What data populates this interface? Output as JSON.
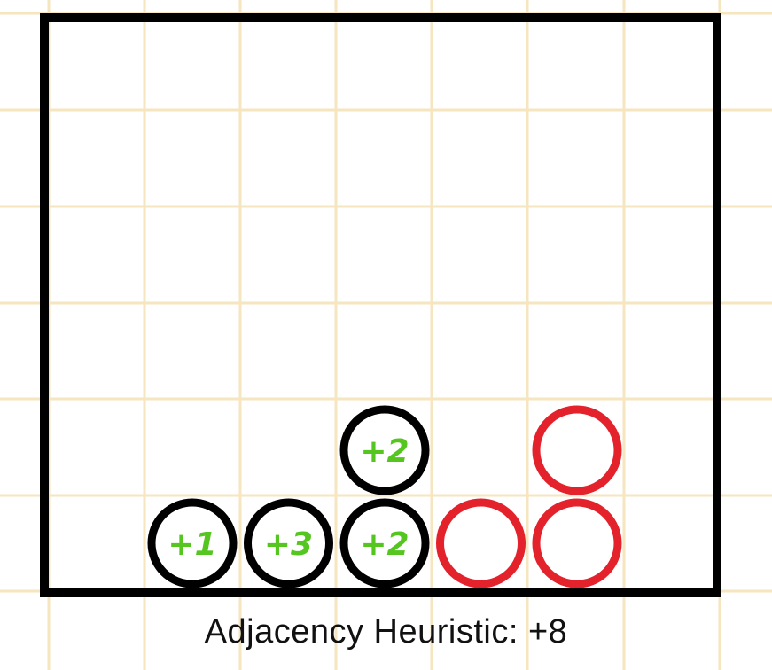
{
  "caption": "Adjacency Heuristic: +8",
  "board": {
    "columns": 7,
    "rows": 6
  },
  "pieces": [
    {
      "column": 1,
      "row": 1,
      "player": "black",
      "label": "+1"
    },
    {
      "column": 2,
      "row": 1,
      "player": "black",
      "label": "+3"
    },
    {
      "column": 3,
      "row": 1,
      "player": "black",
      "label": "+2"
    },
    {
      "column": 3,
      "row": 2,
      "player": "black",
      "label": "+2"
    },
    {
      "column": 4,
      "row": 1,
      "player": "red",
      "label": ""
    },
    {
      "column": 5,
      "row": 1,
      "player": "red",
      "label": ""
    },
    {
      "column": 5,
      "row": 2,
      "player": "red",
      "label": ""
    }
  ],
  "colors": {
    "paper_grid": "#f5e6bf",
    "board_border": "#000000",
    "black_piece": "#000000",
    "red_piece": "#e3222b",
    "label_green": "#55c51f",
    "background": "#ffffff"
  }
}
